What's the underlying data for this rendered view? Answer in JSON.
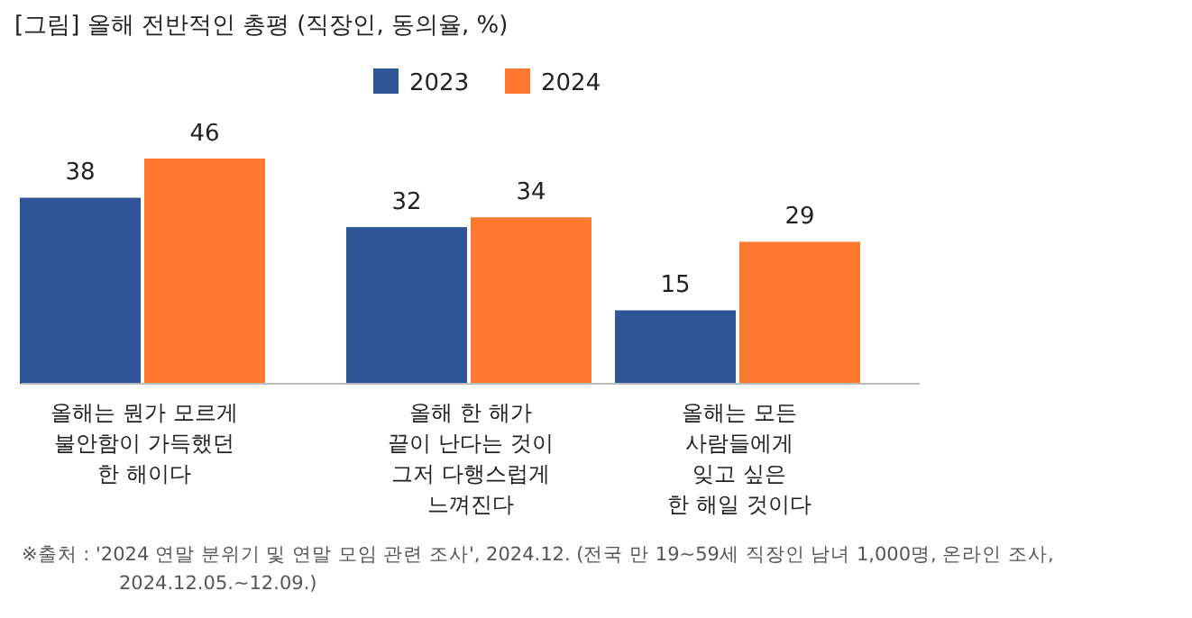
{
  "chart_data": {
    "type": "bar",
    "title": "[그림] 올해 전반적인 총평 (직장인, 동의율, %)",
    "categories": [
      "올해는 뭔가 모르게\n불안함이 가득했던\n한 해이다",
      "올해 한 해가\n끝이 난다는 것이\n그저 다행스럽게\n느껴진다",
      "올해는 모든\n사람들에게\n잊고 싶은\n한 해일 것이다"
    ],
    "series": [
      {
        "name": "2023",
        "color": "#2f5597",
        "values": [
          38,
          32,
          15
        ]
      },
      {
        "name": "2024",
        "color": "#ff7a30",
        "values": [
          46,
          34,
          29
        ]
      }
    ],
    "data_labels": true,
    "legend": "top",
    "annotations": [
      "※출처 : '2024 연말 분위기 및 연말 모임 관련 조사', 2024.12. (전국 만 19~59세 직장인 남녀 1,000명, 온라인 조사, 2024.12.05.~12.09.)"
    ]
  }
}
